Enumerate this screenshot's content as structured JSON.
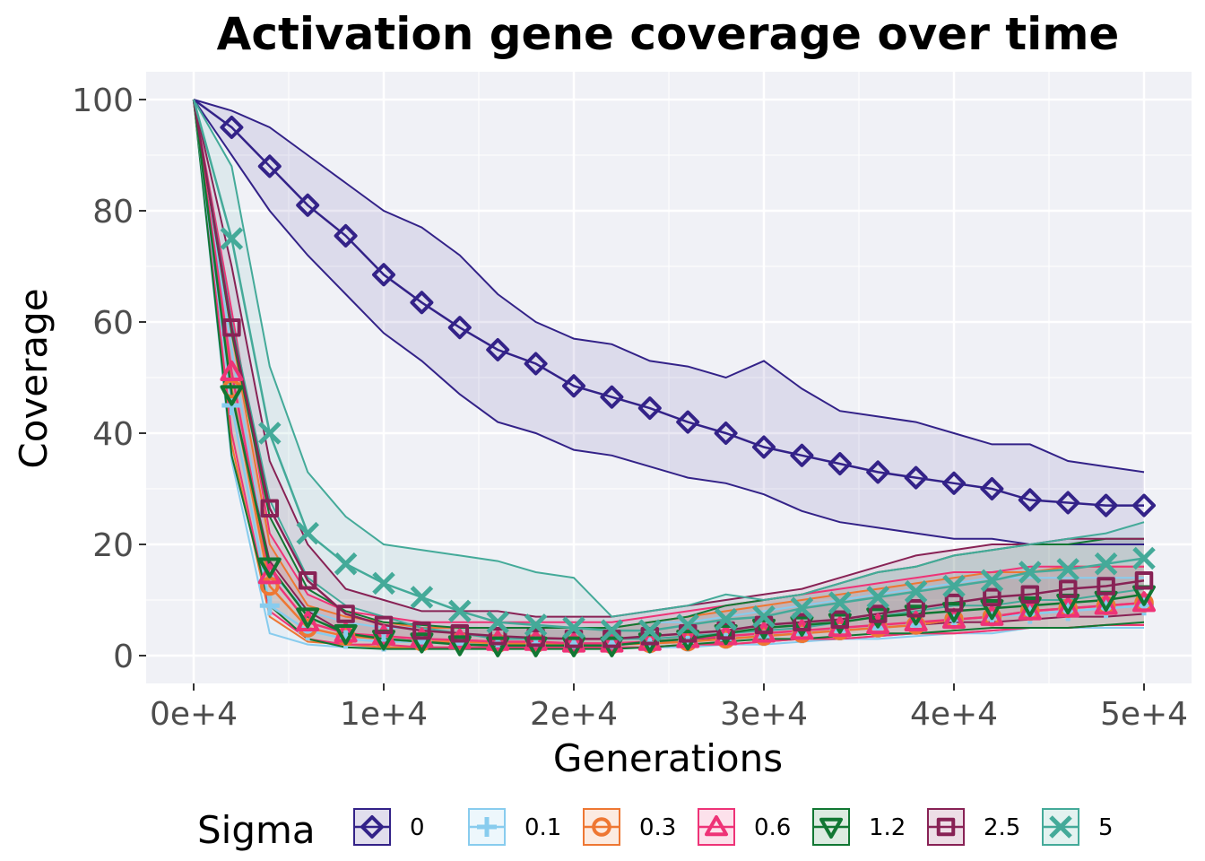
{
  "chart_data": {
    "type": "line",
    "title": "Activation gene coverage over time",
    "xlabel": "Generations",
    "ylabel": "Coverage",
    "xlim": [
      -2500,
      52500
    ],
    "ylim": [
      -5,
      105
    ],
    "x_ticks": [
      0,
      10000,
      20000,
      30000,
      40000,
      50000
    ],
    "x_tick_labels": [
      "0e+4",
      "1e+4",
      "2e+4",
      "3e+4",
      "4e+4",
      "5e+4"
    ],
    "y_ticks": [
      0,
      20,
      40,
      60,
      80,
      100
    ],
    "y_tick_labels": [
      "0",
      "20",
      "40",
      "60",
      "80",
      "100"
    ],
    "grid": true,
    "legend": {
      "title": "Sigma",
      "position": "bottom"
    },
    "x": [
      0,
      2000,
      4000,
      6000,
      8000,
      10000,
      12000,
      14000,
      16000,
      18000,
      20000,
      22000,
      24000,
      26000,
      28000,
      30000,
      32000,
      34000,
      36000,
      38000,
      40000,
      42000,
      44000,
      46000,
      48000,
      50000
    ],
    "series": [
      {
        "name": "0",
        "color": "#332288",
        "marker": "diamond",
        "values": [
          100,
          95,
          88,
          81,
          75.5,
          68.5,
          63.5,
          59,
          55,
          52.5,
          48.5,
          46.5,
          44.5,
          42,
          40,
          37.5,
          36,
          34.5,
          33,
          32,
          31,
          30,
          28,
          27.5,
          27,
          27
        ],
        "upper": [
          100,
          98,
          95,
          90,
          85,
          80,
          77,
          72,
          65,
          60,
          57,
          56,
          53,
          52,
          50,
          53,
          48,
          44,
          43,
          42,
          40,
          38,
          38,
          35,
          34,
          33
        ],
        "lower": [
          100,
          90,
          80,
          72,
          65,
          58,
          53,
          47,
          42,
          40,
          37,
          36,
          34,
          32,
          31,
          29,
          26,
          24,
          23,
          22,
          21,
          21,
          20,
          20,
          20,
          20
        ]
      },
      {
        "name": "0.1",
        "color": "#88CCEE",
        "marker": "plus",
        "values": [
          100,
          45,
          9,
          4.5,
          3,
          2.5,
          2.5,
          2.2,
          2.2,
          2,
          2,
          2,
          2.2,
          2.5,
          3,
          3.5,
          4,
          4.5,
          5,
          5.5,
          6.5,
          7,
          7.5,
          8,
          8.5,
          9
        ],
        "upper": [
          100,
          55,
          15,
          8,
          6,
          5,
          5,
          5,
          5,
          5,
          5,
          5,
          6,
          6,
          7,
          8,
          9,
          10,
          11,
          12,
          13,
          14,
          14,
          14,
          14,
          14
        ],
        "lower": [
          100,
          35,
          4,
          2,
          1.5,
          1.5,
          1.5,
          1.5,
          1.5,
          1.5,
          1.5,
          1.5,
          1.5,
          1.5,
          2,
          2,
          2.5,
          3,
          3,
          3.5,
          4,
          4,
          5,
          5,
          5,
          5
        ]
      },
      {
        "name": "0.3",
        "color": "#EE7733",
        "marker": "circle",
        "values": [
          100,
          48,
          12.5,
          5,
          3.5,
          3,
          2.5,
          2.5,
          2.2,
          2.2,
          2,
          2,
          2.2,
          2.5,
          3,
          3.5,
          4,
          4.5,
          5,
          5.5,
          6.5,
          7,
          8,
          8.5,
          9,
          9.5
        ],
        "upper": [
          100,
          58,
          20,
          9,
          7,
          6,
          5,
          5,
          5,
          5,
          5,
          5,
          6,
          7,
          8,
          9,
          10,
          11,
          12,
          13,
          14,
          15,
          15,
          16,
          16,
          16
        ],
        "lower": [
          100,
          38,
          7,
          2.5,
          2,
          1.5,
          1.5,
          1.5,
          1.5,
          1.5,
          1.5,
          1.5,
          1.5,
          2,
          2,
          2.5,
          3,
          3,
          3.5,
          4,
          4,
          4.5,
          5,
          5,
          5.5,
          5.5
        ]
      },
      {
        "name": "0.6",
        "color": "#EE3377",
        "marker": "triangle-up",
        "values": [
          100,
          51,
          14.5,
          6,
          4,
          3.5,
          3,
          2.8,
          2.5,
          2.5,
          2.2,
          2.2,
          2.5,
          3,
          3.5,
          4,
          4.5,
          5,
          5.5,
          6,
          6.5,
          7,
          8,
          8.5,
          9,
          9.5
        ],
        "upper": [
          100,
          62,
          22,
          11,
          8,
          7,
          6,
          6,
          6,
          6,
          6,
          6,
          7,
          8,
          9,
          10,
          11,
          12,
          13,
          14,
          15,
          15,
          16,
          16,
          16,
          16
        ],
        "lower": [
          100,
          40,
          8,
          3,
          2,
          2,
          1.5,
          1.5,
          1.5,
          1.5,
          1.5,
          1.5,
          1.5,
          2,
          2,
          2.5,
          3,
          3,
          3.5,
          4,
          4,
          4.5,
          5,
          5,
          5.5,
          5.5
        ]
      },
      {
        "name": "1.2",
        "color": "#117733",
        "marker": "triangle-down",
        "values": [
          100,
          47,
          16,
          7,
          4,
          3,
          2.5,
          2,
          1.8,
          1.8,
          1.8,
          1.8,
          2.5,
          3,
          4,
          5,
          5.5,
          6,
          7,
          7.5,
          8,
          8.5,
          9,
          9.5,
          10,
          11
        ],
        "upper": [
          100,
          58,
          25,
          12,
          8,
          6,
          5.5,
          5,
          5,
          5,
          5,
          5,
          6,
          7,
          9,
          10,
          11,
          13,
          15,
          16,
          18,
          19,
          20,
          20,
          21,
          21
        ],
        "lower": [
          100,
          36,
          9,
          3,
          1.5,
          1.2,
          1.2,
          1.2,
          1.2,
          1.2,
          1.2,
          1.2,
          1.5,
          2,
          2.5,
          3,
          3,
          3.5,
          4,
          4,
          4.5,
          5,
          5,
          5,
          5.5,
          6
        ]
      },
      {
        "name": "2.5",
        "color": "#882255",
        "marker": "square",
        "values": [
          100,
          59,
          26.5,
          13.5,
          7.5,
          5.5,
          4.5,
          4,
          3.5,
          3.2,
          3,
          3,
          3.5,
          4,
          4.5,
          5.5,
          6,
          6.5,
          7.5,
          8.5,
          9.5,
          10.5,
          11,
          12,
          12.5,
          13.5
        ],
        "upper": [
          100,
          70,
          35,
          20,
          12,
          10,
          8,
          8,
          8,
          7,
          7,
          7,
          8,
          9,
          10,
          11,
          12,
          14,
          16,
          18,
          19,
          20,
          20,
          21,
          21,
          21
        ],
        "lower": [
          100,
          47,
          17,
          8,
          4,
          3,
          2.5,
          2.5,
          2,
          2,
          2,
          2,
          2.5,
          3,
          3,
          3.5,
          4,
          4.5,
          5,
          5.5,
          6,
          6,
          6.5,
          7,
          7,
          7.5
        ]
      },
      {
        "name": "5",
        "color": "#44AA99",
        "marker": "x",
        "values": [
          100,
          75,
          40,
          22,
          16.5,
          13,
          10.5,
          8,
          6,
          5.5,
          5,
          4.5,
          4.5,
          5.5,
          6.5,
          7,
          8.5,
          9.5,
          10.5,
          11.5,
          12.5,
          13.5,
          15,
          15.5,
          16.5,
          17.5
        ],
        "upper": [
          100,
          88,
          52,
          33,
          25,
          20,
          19,
          18,
          17,
          15,
          14,
          7,
          8,
          9,
          11,
          10,
          11,
          13,
          15,
          16,
          18,
          19,
          20,
          21,
          22,
          24
        ],
        "lower": [
          100,
          60,
          28,
          14,
          9,
          7,
          5,
          4,
          3,
          3,
          3,
          3,
          3,
          3.5,
          4,
          4.5,
          5,
          6,
          7,
          8,
          9,
          9,
          10,
          10,
          11,
          12
        ]
      }
    ]
  }
}
